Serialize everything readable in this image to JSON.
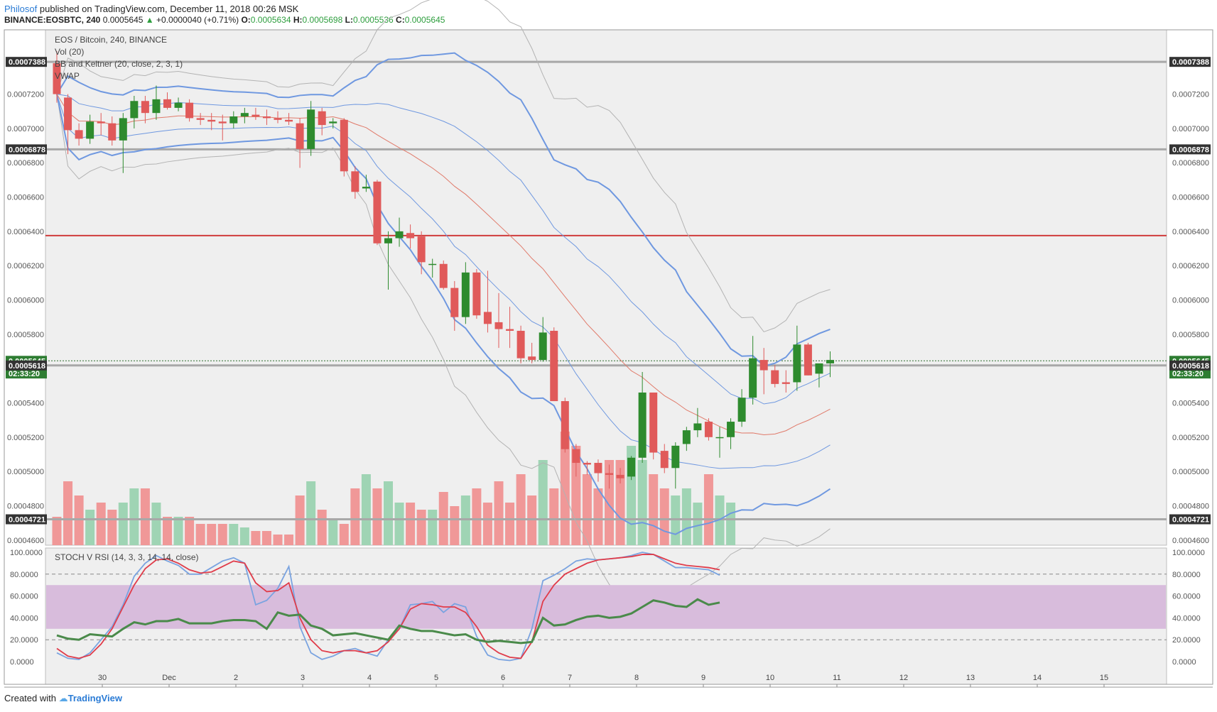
{
  "header": {
    "author": "Philosof",
    "published": "published on TradingView.com, December 11, 2018 00:26 MSK",
    "symbol": "BINANCE:EOSBTC, 240",
    "last": "0.0005645",
    "change": "+0.0000040 (+0.71%)",
    "o_label": "O:",
    "o": "0.0005634",
    "h_label": "H:",
    "h": "0.0005698",
    "l_label": "L:",
    "l": "0.0005536",
    "c_label": "C:",
    "c": "0.0005645"
  },
  "legend": {
    "title": "EOS / Bitcoin, 240, BINANCE",
    "vol": "Vol (20)",
    "bb": "BB and Keltner (20, close, 2, 3, 1)",
    "vwap": "VWAP",
    "stoch": "STOCH V RSI (14, 3, 3, 14, 14, close)"
  },
  "footer": {
    "created": "Created with",
    "brand": "TradingView"
  },
  "colors": {
    "up": "#2e8b2e",
    "down": "#e05a5a",
    "vol_up": "#9fd4b4",
    "vol_down": "#f09898",
    "bb": "#6f98e0",
    "keltner": "#6f98e0",
    "bb_outer": "#b3b3b3",
    "ema": "#e07a6a",
    "vwap": "#444444",
    "resistance": "#d03c3c",
    "level": "#a8a8a8",
    "stoch_k": "#7aa3e0",
    "stoch_d": "#e03c4a",
    "rsi": "#4a8a4a",
    "band": "#d8bcdc"
  },
  "chart_data": {
    "type": "candlestick",
    "x_ticks": [
      "30",
      "Dec",
      "2",
      "3",
      "4",
      "5",
      "6",
      "7",
      "8",
      "9",
      "10",
      "11",
      "12",
      "13",
      "14",
      "15"
    ],
    "price_axis": {
      "ylim": [
        0.000457,
        0.0007575
      ],
      "ticks": [
        "0.0004600",
        "0.0004800",
        "0.0005000",
        "0.0005200",
        "0.0005400",
        "0.0005600",
        "0.0005800",
        "0.0006000",
        "0.0006200",
        "0.0006400",
        "0.0006600",
        "0.0006800",
        "0.0007000",
        "0.0007200"
      ]
    },
    "price_labels": [
      {
        "text": "0.0007388",
        "value": 0.0007388
      },
      {
        "text": "0.0006878",
        "value": 0.0006878
      },
      {
        "text": "0.0005645",
        "value": 0.0005645,
        "kind": "last"
      },
      {
        "text": "02:33:20",
        "value": 0.0005571,
        "kind": "timer"
      },
      {
        "text": "0.0005618",
        "value": 0.0005618
      },
      {
        "text": "0.0004721",
        "value": 0.0004721
      }
    ],
    "horizontal_levels": [
      {
        "value": 0.0007388,
        "style": "gray"
      },
      {
        "value": 0.0006878,
        "style": "gray"
      },
      {
        "value": 0.0006375,
        "style": "red"
      },
      {
        "value": 0.0005618,
        "style": "gray"
      },
      {
        "value": 0.0004721,
        "style": "gray"
      }
    ],
    "candles": [
      {
        "o": 7.38,
        "h": 7.45,
        "l": 7.15,
        "c": 7.2
      },
      {
        "o": 7.18,
        "h": 7.2,
        "l": 6.85,
        "c": 6.99
      },
      {
        "o": 6.99,
        "h": 7.03,
        "l": 6.9,
        "c": 6.94
      },
      {
        "o": 6.94,
        "h": 7.08,
        "l": 6.91,
        "c": 7.04
      },
      {
        "o": 7.04,
        "h": 7.09,
        "l": 6.96,
        "c": 7.03
      },
      {
        "o": 7.03,
        "h": 7.07,
        "l": 6.9,
        "c": 6.93
      },
      {
        "o": 6.93,
        "h": 7.09,
        "l": 6.74,
        "c": 7.06
      },
      {
        "o": 7.06,
        "h": 7.19,
        "l": 7.0,
        "c": 7.16
      },
      {
        "o": 7.16,
        "h": 7.19,
        "l": 7.03,
        "c": 7.09
      },
      {
        "o": 7.09,
        "h": 7.25,
        "l": 7.05,
        "c": 7.17
      },
      {
        "o": 7.17,
        "h": 7.21,
        "l": 7.11,
        "c": 7.12
      },
      {
        "o": 7.12,
        "h": 7.18,
        "l": 7.1,
        "c": 7.15
      },
      {
        "o": 7.15,
        "h": 7.17,
        "l": 7.04,
        "c": 7.06
      },
      {
        "o": 7.06,
        "h": 7.09,
        "l": 7.02,
        "c": 7.05
      },
      {
        "o": 7.05,
        "h": 7.09,
        "l": 6.99,
        "c": 7.04
      },
      {
        "o": 7.04,
        "h": 7.08,
        "l": 6.93,
        "c": 7.03
      },
      {
        "o": 7.03,
        "h": 7.1,
        "l": 7.0,
        "c": 7.07
      },
      {
        "o": 7.07,
        "h": 7.12,
        "l": 7.03,
        "c": 7.09
      },
      {
        "o": 7.08,
        "h": 7.12,
        "l": 7.05,
        "c": 7.07
      },
      {
        "o": 7.07,
        "h": 7.11,
        "l": 7.02,
        "c": 7.06
      },
      {
        "o": 7.06,
        "h": 7.1,
        "l": 7.03,
        "c": 7.05
      },
      {
        "o": 7.05,
        "h": 7.09,
        "l": 7.02,
        "c": 7.04
      },
      {
        "o": 7.03,
        "h": 7.06,
        "l": 6.77,
        "c": 6.88
      },
      {
        "o": 6.88,
        "h": 7.16,
        "l": 6.84,
        "c": 7.11
      },
      {
        "o": 7.1,
        "h": 7.12,
        "l": 6.96,
        "c": 7.02
      },
      {
        "o": 7.03,
        "h": 7.06,
        "l": 7.0,
        "c": 7.04
      },
      {
        "o": 7.05,
        "h": 7.06,
        "l": 6.72,
        "c": 6.75
      },
      {
        "o": 6.75,
        "h": 6.78,
        "l": 6.59,
        "c": 6.63
      },
      {
        "o": 6.65,
        "h": 6.73,
        "l": 6.63,
        "c": 6.66
      },
      {
        "o": 6.69,
        "h": 6.7,
        "l": 6.32,
        "c": 6.33
      },
      {
        "o": 6.33,
        "h": 6.4,
        "l": 6.06,
        "c": 6.36
      },
      {
        "o": 6.36,
        "h": 6.48,
        "l": 6.31,
        "c": 6.4
      },
      {
        "o": 6.39,
        "h": 6.44,
        "l": 6.3,
        "c": 6.36
      },
      {
        "o": 6.37,
        "h": 6.4,
        "l": 6.15,
        "c": 6.22
      },
      {
        "o": 6.21,
        "h": 6.24,
        "l": 6.13,
        "c": 6.21
      },
      {
        "o": 6.21,
        "h": 6.23,
        "l": 6.06,
        "c": 6.07
      },
      {
        "o": 6.07,
        "h": 6.11,
        "l": 5.82,
        "c": 5.9
      },
      {
        "o": 5.9,
        "h": 6.22,
        "l": 5.86,
        "c": 6.16
      },
      {
        "o": 6.16,
        "h": 6.18,
        "l": 5.89,
        "c": 5.91
      },
      {
        "o": 5.93,
        "h": 6.17,
        "l": 5.81,
        "c": 5.86
      },
      {
        "o": 5.87,
        "h": 6.04,
        "l": 5.72,
        "c": 5.83
      },
      {
        "o": 5.83,
        "h": 5.96,
        "l": 5.72,
        "c": 5.82
      },
      {
        "o": 5.82,
        "h": 5.85,
        "l": 5.63,
        "c": 5.66
      },
      {
        "o": 5.67,
        "h": 5.75,
        "l": 5.63,
        "c": 5.65
      },
      {
        "o": 5.65,
        "h": 5.9,
        "l": 5.64,
        "c": 5.81
      },
      {
        "o": 5.82,
        "h": 5.84,
        "l": 5.41,
        "c": 5.41
      },
      {
        "o": 5.41,
        "h": 5.43,
        "l": 5.11,
        "c": 5.13
      },
      {
        "o": 5.13,
        "h": 5.16,
        "l": 4.97,
        "c": 5.05
      },
      {
        "o": 5.05,
        "h": 5.06,
        "l": 4.98,
        "c": 5.04
      },
      {
        "o": 5.05,
        "h": 5.07,
        "l": 4.94,
        "c": 4.99
      },
      {
        "o": 4.99,
        "h": 5.04,
        "l": 4.9,
        "c": 4.98
      },
      {
        "o": 4.98,
        "h": 5.02,
        "l": 4.93,
        "c": 4.96
      },
      {
        "o": 4.97,
        "h": 5.09,
        "l": 4.95,
        "c": 5.08
      },
      {
        "o": 5.08,
        "h": 5.58,
        "l": 5.05,
        "c": 5.46
      },
      {
        "o": 5.46,
        "h": 5.46,
        "l": 5.07,
        "c": 5.11
      },
      {
        "o": 5.12,
        "h": 5.16,
        "l": 4.99,
        "c": 5.02
      },
      {
        "o": 5.02,
        "h": 5.17,
        "l": 4.9,
        "c": 5.15
      },
      {
        "o": 5.16,
        "h": 5.26,
        "l": 5.12,
        "c": 5.24
      },
      {
        "o": 5.24,
        "h": 5.37,
        "l": 5.2,
        "c": 5.28
      },
      {
        "o": 5.29,
        "h": 5.31,
        "l": 5.18,
        "c": 5.2
      },
      {
        "o": 5.2,
        "h": 5.26,
        "l": 5.08,
        "c": 5.2
      },
      {
        "o": 5.2,
        "h": 5.31,
        "l": 5.13,
        "c": 5.29
      },
      {
        "o": 5.29,
        "h": 5.48,
        "l": 5.26,
        "c": 5.43
      },
      {
        "o": 5.43,
        "h": 5.79,
        "l": 5.39,
        "c": 5.66
      },
      {
        "o": 5.65,
        "h": 5.72,
        "l": 5.45,
        "c": 5.59
      },
      {
        "o": 5.59,
        "h": 5.62,
        "l": 5.49,
        "c": 5.51
      },
      {
        "o": 5.52,
        "h": 5.59,
        "l": 5.46,
        "c": 5.51
      },
      {
        "o": 5.52,
        "h": 5.85,
        "l": 5.47,
        "c": 5.74
      },
      {
        "o": 5.74,
        "h": 5.75,
        "l": 5.56,
        "c": 5.56
      },
      {
        "o": 5.57,
        "h": 5.62,
        "l": 5.49,
        "c": 5.63
      },
      {
        "o": 5.63,
        "h": 5.7,
        "l": 5.55,
        "c": 5.65
      }
    ],
    "stoch_axis": {
      "ylim": [
        0,
        100
      ],
      "ticks": [
        "100.0000",
        "80.0000",
        "60.0000",
        "40.0000",
        "20.0000",
        "0.0000"
      ]
    },
    "stoch_band": [
      30,
      70
    ],
    "stoch_levels": [
      80,
      20
    ],
    "stoch_k": [
      8,
      3,
      2,
      8,
      20,
      32,
      52,
      78,
      90,
      97,
      92,
      88,
      80,
      80,
      86,
      92,
      95,
      90,
      52,
      56,
      67,
      87,
      32,
      8,
      2,
      5,
      10,
      12,
      8,
      5,
      20,
      30,
      52,
      53,
      55,
      45,
      53,
      50,
      23,
      6,
      2,
      1,
      3,
      30,
      74,
      79,
      85,
      92,
      94,
      93,
      94,
      95,
      97,
      100,
      98,
      92,
      86,
      86,
      85,
      84,
      79
    ],
    "stoch_d": [
      12,
      5,
      3,
      6,
      16,
      30,
      50,
      70,
      85,
      93,
      94,
      90,
      84,
      81,
      82,
      87,
      92,
      90,
      72,
      64,
      65,
      72,
      40,
      20,
      10,
      8,
      10,
      10,
      8,
      10,
      18,
      30,
      48,
      53,
      52,
      50,
      50,
      45,
      32,
      15,
      8,
      4,
      3,
      18,
      55,
      70,
      80,
      85,
      90,
      93,
      94,
      95,
      96,
      98,
      98,
      94,
      90,
      88,
      87,
      86,
      84
    ],
    "stoch_rsi": [
      24,
      21,
      20,
      25,
      24,
      23,
      30,
      36,
      34,
      37,
      37,
      39,
      35,
      35,
      35,
      37,
      38,
      38,
      37,
      30,
      45,
      42,
      43,
      33,
      30,
      24,
      25,
      26,
      24,
      22,
      20,
      33,
      30,
      28,
      28,
      26,
      24,
      25,
      20,
      18,
      19,
      18,
      17,
      18,
      40,
      33,
      34,
      38,
      41,
      42,
      40,
      41,
      44,
      50,
      56,
      54,
      51,
      50,
      57,
      52,
      54
    ],
    "volumes": [
      0.4,
      0.9,
      0.7,
      0.5,
      0.6,
      0.5,
      0.6,
      0.8,
      0.8,
      0.6,
      0.4,
      0.4,
      0.4,
      0.3,
      0.3,
      0.3,
      0.3,
      0.25,
      0.2,
      0.2,
      0.15,
      0.15,
      0.7,
      0.9,
      0.5,
      0.35,
      0.3,
      0.8,
      1.0,
      0.8,
      0.9,
      0.6,
      0.6,
      0.5,
      0.5,
      0.75,
      0.55,
      0.7,
      0.8,
      0.6,
      0.9,
      0.6,
      1.0,
      0.7,
      1.2,
      0.8,
      1.6,
      1.4,
      1.0,
      0.8,
      1.2,
      1.2,
      1.4,
      1.2,
      1.0,
      0.8,
      0.7,
      0.8,
      0.6,
      1.0,
      0.7,
      0.6
    ]
  }
}
